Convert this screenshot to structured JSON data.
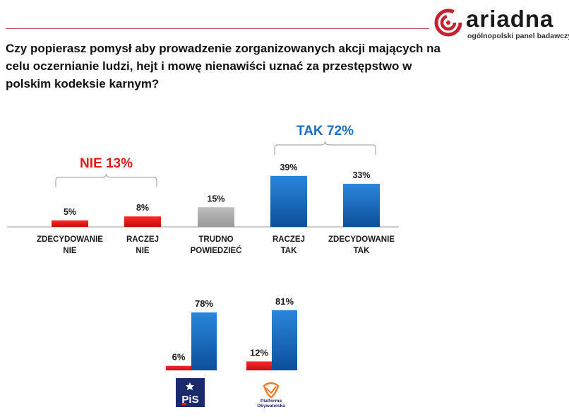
{
  "logo": {
    "name": "ariadna",
    "tagline": "ogólnopolski panel badawczy",
    "accent": "#c8202e"
  },
  "question": "Czy popierasz pomysł aby prowadzenie zorganizowanych akcji mających na celu oczernianie ludzi, hejt i mowę nienawiści uznać za przestępstwo w polskim kodeksie karnym?",
  "colors": {
    "red": "#e21b1b",
    "blue": "#1a6fc4",
    "gray": "#a9a9a9",
    "nie_label": "#e21b1b",
    "tak_label": "#1a6fc4"
  },
  "chart_data": [
    {
      "type": "bar",
      "categories": [
        [
          "ZDECYDOWANIE",
          "NIE"
        ],
        [
          "RACZEJ",
          "NIE"
        ],
        [
          "TRUDNO",
          "POWIEDZIEĆ"
        ],
        [
          "RACZEJ",
          "TAK"
        ],
        [
          "ZDECYDOWANIE",
          "TAK"
        ]
      ],
      "values": [
        5,
        8,
        15,
        39,
        33
      ],
      "value_labels": [
        "5%",
        "8%",
        "15%",
        "39%",
        "33%"
      ],
      "bar_colors": [
        "red",
        "red",
        "gray",
        "blue",
        "blue"
      ],
      "groups": [
        {
          "label": "NIE 13%",
          "from": 0,
          "to": 1,
          "color": "nie_label"
        },
        {
          "label": "TAK 72%",
          "from": 3,
          "to": 4,
          "color": "tak_label"
        }
      ]
    },
    {
      "type": "bar",
      "groups_by_party": [
        {
          "party": "PiS",
          "series": [
            {
              "value": 6,
              "label": "6%",
              "color": "red"
            },
            {
              "value": 78,
              "label": "78%",
              "color": "blue"
            }
          ]
        },
        {
          "party": "Platforma Obywatelska",
          "series": [
            {
              "value": 12,
              "label": "12%",
              "color": "red"
            },
            {
              "value": 81,
              "label": "81%",
              "color": "blue"
            }
          ]
        }
      ]
    }
  ],
  "party_logos": [
    {
      "name": "pis-logo-icon",
      "text": "PiS"
    },
    {
      "name": "po-logo-icon",
      "text": "Platforma Obywatelska"
    }
  ]
}
